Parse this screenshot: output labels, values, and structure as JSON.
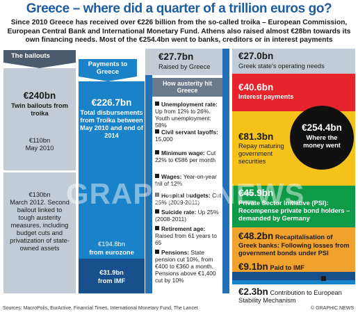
{
  "header": {
    "title": "Greece – where did a quarter of a trillion euros go?",
    "intro": "Since 2010 Greece has received over €226 billion from the so-called troika – European Commission, European Central Bank and International Monetary Fund. Athens also raised almost €28bn towards its own financing needs. Most of the €254.4bn went to banks, creditors or in interest payments"
  },
  "chart_data": [
    {
      "type": "bar",
      "title": "The bailouts",
      "series": [
        {
          "name": "Twin bailouts from troika",
          "values": [
            240
          ],
          "unit": "€bn"
        },
        {
          "name": "May 2010",
          "values": [
            110
          ]
        },
        {
          "name": "March 2012. Second bailout linked to tough austerity measures, including budget cuts and privatization of state-owned assets",
          "values": [
            130
          ]
        }
      ]
    },
    {
      "type": "bar",
      "title": "Payments to Greece",
      "series": [
        {
          "name": "Total disbursements from Troika between May 2010 and end of 2014",
          "values": [
            226.7
          ]
        },
        {
          "name": "from eurozone",
          "values": [
            194.8
          ]
        },
        {
          "name": "from IMF",
          "values": [
            31.9
          ]
        },
        {
          "name": "Raised by Greece",
          "values": [
            27.7
          ]
        }
      ]
    },
    {
      "type": "bar",
      "title": "Where the money went",
      "total": 254.4,
      "categories": [
        "Greek state's operating needs",
        "Interest payments",
        "Repay maturing government securities",
        "Private Sector Initiative (PSI): Recompense private bond holders – demanded by Germany",
        "Recapitalisation of Greek banks",
        "Paid to IMF",
        "Contribution to European Stability Mechanism"
      ],
      "values": [
        27.0,
        40.6,
        81.3,
        45.9,
        48.2,
        9.1,
        2.3
      ]
    }
  ],
  "labels": {
    "bailouts_head": "The bailouts",
    "payments_head": "Payments to Greece",
    "b240": "€240bn",
    "b240_desc": "Twin bailouts from troika",
    "b110": "€110bn",
    "b110_desc": "May 2010",
    "b130": "€130bn",
    "b130_desc": "March 2012. Second bailout linked to tough austerity measures, including budget cuts and privatization of state-owned assets",
    "p2267": "€226.7bn",
    "p2267_desc": "Total disbursements from Troika between May 2010 and end of 2014",
    "p1948": "€194.8bn",
    "p1948_desc": "from eurozone",
    "p319": "€31.9bn",
    "p319_desc": "from IMF",
    "r277": "€27.7bn",
    "r277_desc": "Raised by Greece",
    "aus_head": "How austerity hit Greece",
    "w270": "€27.0bn",
    "w270_desc": "Greek state's operating needs",
    "w406": "€40.6bn",
    "w406_desc": "Interest payments",
    "w813": "€81.3bn",
    "w813_desc": "Repay maturing government securities",
    "w459": "€45.9bn",
    "w459_desc": "Private Sector Initiative (PSI): Recompense private bond holders – demanded by Germany",
    "w482": "€48.2bn",
    "w482_desc_a": "Recapitalisation of",
    "w482_desc_b": "Greek banks: Following losses from government bonds under PSI",
    "w91": "€9.1bn",
    "w91_desc": "Paid to IMF",
    "w23": "€2.3bn",
    "w23_desc": "Contribution to European Stability Mechanism",
    "circle_value": "€254.4bn",
    "circle_desc": "Where the money went"
  },
  "austerity": [
    {
      "head": "Unemployment rate:",
      "text": "Up from 12% to 26%. Youth unemployment: 58%"
    },
    {
      "head": "Civil servant layoffs:",
      "text": "15,000"
    },
    {
      "head": "Minimum wage:",
      "text": "Cut 22% to €586 per month"
    },
    {
      "head": "Wages:",
      "text": "Year-on-year fall of 12%"
    },
    {
      "head": "Hospital budgets:",
      "text": "Cut 25% (2009-2011)"
    },
    {
      "head": "Suicide rate:",
      "text": "Up 25% (2008-2011)"
    },
    {
      "head": "Retirement age:",
      "text": "Raised from 61 years to 65"
    },
    {
      "head": "Pensions:",
      "text": "State pension cut 10%, from €400 to €360 a month. Pensions above €1,400 cut by 10%"
    }
  ],
  "footer": {
    "sources": "Sources: MacroPolis, EurActive, Financial Times, International Monetary Fund, The Lancet",
    "credit": "© GRAPHIC NEWS"
  },
  "watermark": "GRAPHIC NEWS",
  "colors": {
    "title": "#1f5c9c",
    "gray": "#c3ccd6",
    "blue": "#1a82c8",
    "navy": "#17508d",
    "red": "#e5242b",
    "yellow": "#f4c21b",
    "green": "#0f9a48",
    "orange": "#f0a22f"
  }
}
